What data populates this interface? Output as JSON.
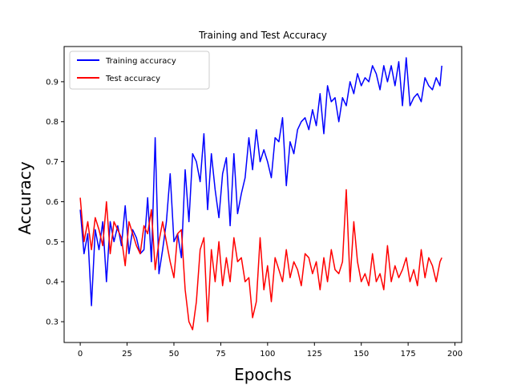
{
  "chart_data": {
    "type": "line",
    "title": "Training and Test Accuracy",
    "xlabel": "Epochs",
    "ylabel": "Accuracy",
    "xlim": [
      -8.6,
      203.6
    ],
    "ylim": [
      0.248,
      0.988
    ],
    "xticks": [
      0,
      25,
      50,
      75,
      100,
      125,
      150,
      175,
      200
    ],
    "yticks": [
      0.3,
      0.4,
      0.5,
      0.6,
      0.7,
      0.8,
      0.9
    ],
    "grid": false,
    "legend": "top-left",
    "series": [
      {
        "name": "Training accuracy",
        "color": "#0000ff",
        "x": [
          0,
          2,
          4,
          6,
          8,
          10,
          12,
          14,
          16,
          18,
          20,
          22,
          24,
          26,
          28,
          30,
          32,
          34,
          36,
          38,
          40,
          42,
          44,
          46,
          48,
          50,
          52,
          54,
          56,
          58,
          60,
          62,
          64,
          66,
          68,
          70,
          72,
          74,
          76,
          78,
          80,
          82,
          84,
          86,
          88,
          90,
          92,
          94,
          96,
          98,
          100,
          102,
          104,
          106,
          108,
          110,
          112,
          114,
          116,
          118,
          120,
          122,
          124,
          126,
          128,
          130,
          132,
          134,
          136,
          138,
          140,
          142,
          144,
          146,
          148,
          150,
          152,
          154,
          156,
          158,
          160,
          162,
          164,
          166,
          168,
          170,
          172,
          174,
          176,
          178,
          180,
          182,
          184,
          186,
          188,
          190,
          192,
          193
        ],
        "y": [
          0.58,
          0.47,
          0.52,
          0.34,
          0.53,
          0.48,
          0.55,
          0.4,
          0.55,
          0.5,
          0.54,
          0.49,
          0.59,
          0.47,
          0.53,
          0.51,
          0.47,
          0.48,
          0.61,
          0.45,
          0.76,
          0.42,
          0.48,
          0.55,
          0.67,
          0.5,
          0.52,
          0.46,
          0.68,
          0.55,
          0.72,
          0.7,
          0.65,
          0.77,
          0.58,
          0.72,
          0.63,
          0.56,
          0.67,
          0.71,
          0.54,
          0.72,
          0.57,
          0.62,
          0.66,
          0.76,
          0.68,
          0.78,
          0.7,
          0.73,
          0.7,
          0.66,
          0.76,
          0.75,
          0.81,
          0.64,
          0.75,
          0.72,
          0.78,
          0.8,
          0.81,
          0.78,
          0.83,
          0.79,
          0.87,
          0.77,
          0.89,
          0.85,
          0.86,
          0.8,
          0.86,
          0.84,
          0.9,
          0.87,
          0.92,
          0.89,
          0.91,
          0.9,
          0.94,
          0.92,
          0.88,
          0.94,
          0.9,
          0.94,
          0.89,
          0.95,
          0.84,
          0.96,
          0.84,
          0.86,
          0.87,
          0.85,
          0.91,
          0.89,
          0.88,
          0.91,
          0.89,
          0.94
        ]
      },
      {
        "name": "Test accuracy",
        "color": "#ff0000",
        "x": [
          0,
          2,
          4,
          6,
          8,
          10,
          12,
          14,
          16,
          18,
          20,
          22,
          24,
          26,
          28,
          30,
          32,
          34,
          36,
          38,
          40,
          42,
          44,
          46,
          48,
          50,
          52,
          54,
          56,
          58,
          60,
          62,
          64,
          66,
          68,
          70,
          72,
          74,
          76,
          78,
          80,
          82,
          84,
          86,
          88,
          90,
          92,
          94,
          96,
          98,
          100,
          102,
          104,
          106,
          108,
          110,
          112,
          114,
          116,
          118,
          120,
          122,
          124,
          126,
          128,
          130,
          132,
          134,
          136,
          138,
          140,
          142,
          144,
          146,
          148,
          150,
          152,
          154,
          156,
          158,
          160,
          162,
          164,
          166,
          168,
          170,
          172,
          174,
          176,
          178,
          180,
          182,
          184,
          186,
          188,
          190,
          192,
          193
        ],
        "y": [
          0.61,
          0.5,
          0.55,
          0.48,
          0.56,
          0.53,
          0.49,
          0.6,
          0.47,
          0.55,
          0.53,
          0.51,
          0.44,
          0.55,
          0.52,
          0.49,
          0.47,
          0.54,
          0.52,
          0.58,
          0.43,
          0.5,
          0.55,
          0.5,
          0.45,
          0.41,
          0.52,
          0.53,
          0.38,
          0.3,
          0.28,
          0.35,
          0.48,
          0.51,
          0.3,
          0.48,
          0.4,
          0.5,
          0.39,
          0.46,
          0.4,
          0.51,
          0.45,
          0.46,
          0.4,
          0.41,
          0.31,
          0.35,
          0.51,
          0.38,
          0.44,
          0.35,
          0.46,
          0.43,
          0.4,
          0.48,
          0.41,
          0.45,
          0.43,
          0.39,
          0.47,
          0.46,
          0.42,
          0.45,
          0.38,
          0.46,
          0.4,
          0.48,
          0.43,
          0.42,
          0.45,
          0.63,
          0.4,
          0.55,
          0.45,
          0.4,
          0.42,
          0.39,
          0.47,
          0.4,
          0.42,
          0.38,
          0.49,
          0.4,
          0.44,
          0.41,
          0.43,
          0.46,
          0.4,
          0.43,
          0.39,
          0.48,
          0.41,
          0.46,
          0.44,
          0.4,
          0.45,
          0.46
        ]
      }
    ]
  }
}
